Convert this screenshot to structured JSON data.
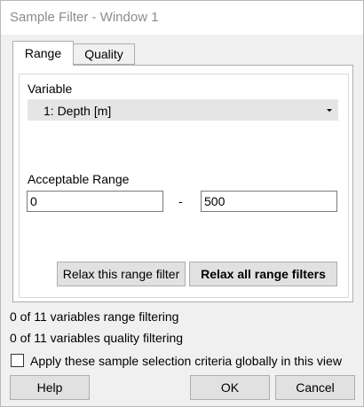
{
  "window": {
    "title": "Sample Filter - Window 1"
  },
  "tabs": [
    {
      "label": "Range",
      "selected": true
    },
    {
      "label": "Quality",
      "selected": false
    }
  ],
  "range_tab": {
    "variable_label": "Variable",
    "variable_selected": "1: Depth [m]",
    "acceptable_range_label": "Acceptable Range",
    "range_min": "0",
    "range_separator": "-",
    "range_max": "500",
    "relax_this_label": "Relax this range filter",
    "relax_all_label": "Relax all range filters"
  },
  "status": {
    "range_filtering": "0 of 11 variables range filtering",
    "quality_filtering": "0 of 11 variables quality filtering"
  },
  "global_option": {
    "label": "Apply these sample selection criteria globally in this view",
    "checked": false
  },
  "buttons": {
    "help": "Help",
    "ok": "OK",
    "cancel": "Cancel"
  },
  "icons": {
    "dropdown": "chevron-down-icon",
    "checkbox": "checkbox-icon"
  }
}
